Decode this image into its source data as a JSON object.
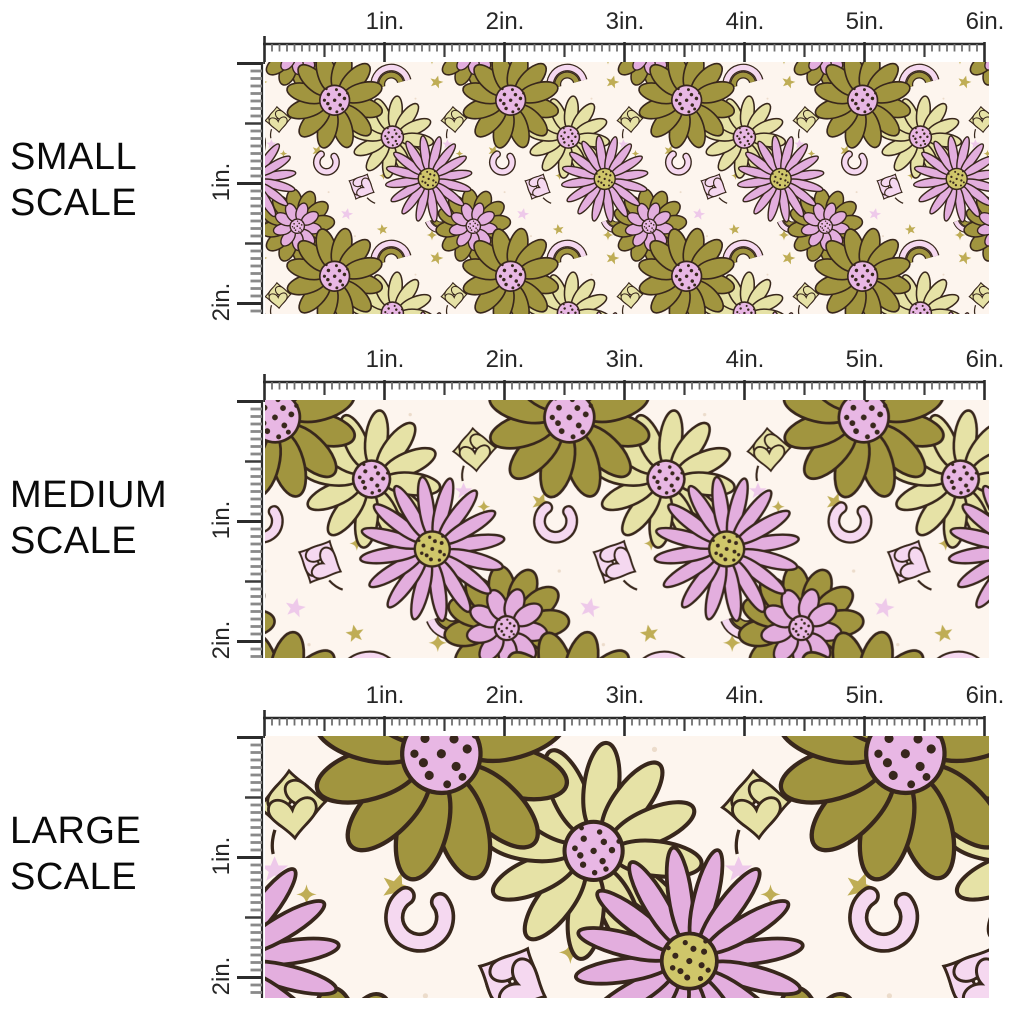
{
  "page_background": "#ffffff",
  "panels": [
    {
      "name": "small-scale",
      "label_lines": [
        "SMALL",
        "SCALE"
      ],
      "pattern_scale": 0.55
    },
    {
      "name": "medium-scale",
      "label_lines": [
        "MEDIUM",
        "SCALE"
      ],
      "pattern_scale": 0.92
    },
    {
      "name": "large-scale",
      "label_lines": [
        "LARGE",
        "SCALE"
      ],
      "pattern_scale": 1.45
    }
  ],
  "ruler": {
    "horizontal_labels": [
      "1in.",
      "2in.",
      "3in.",
      "4in.",
      "5in.",
      "6in."
    ],
    "vertical_labels": [
      "1in.",
      "2in."
    ]
  },
  "swatch": {
    "description": "retro floral fabric pattern with daisies, mums, clovers, rainbows, horseshoes and stars",
    "colors": {
      "background": "#fdf5ee",
      "olive": "#a1953f",
      "chartreuse": "#e6e2a6",
      "lavender": "#e3aede",
      "light_pink": "#f5d8f0",
      "pink_center": "#e8b7e4",
      "olive_center": "#cfc66a",
      "gold": "#bfad55",
      "pink_star": "#eec9ea",
      "outline": "#38271c"
    },
    "motifs": [
      "daisy",
      "mum",
      "clover",
      "rainbow",
      "horseshoe",
      "star",
      "sparkle"
    ]
  }
}
